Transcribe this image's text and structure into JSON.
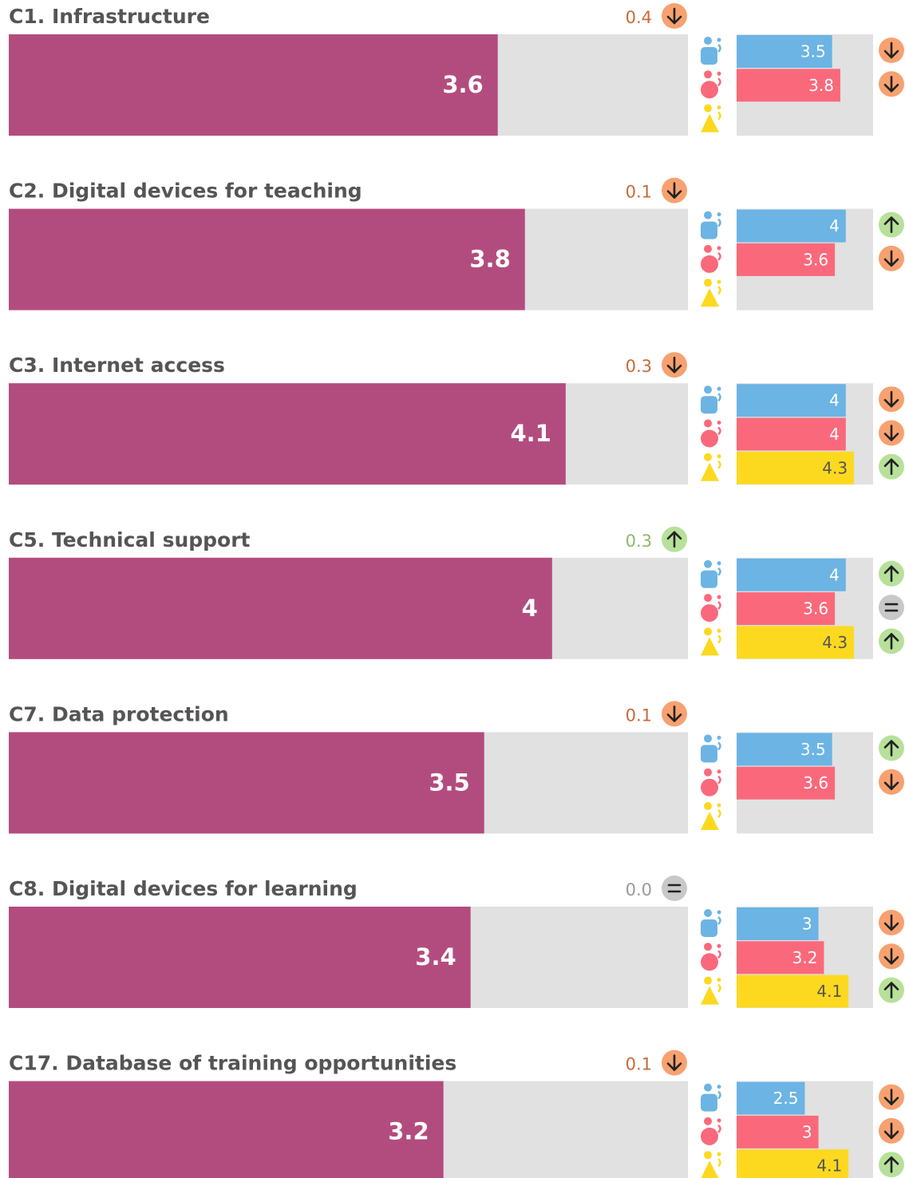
{
  "chart_data": {
    "type": "scorecard",
    "xlim": [
      0,
      5
    ],
    "main_color": "#b34c7e",
    "track_color": "#e1e1e1",
    "group_colors": [
      "#6cb4e4",
      "#f9697b",
      "#fcd91f"
    ],
    "panels": [
      {
        "title": "C1. Infrastructure",
        "value": 3.6,
        "change": {
          "value": 0.4,
          "direction": "down"
        },
        "groups": [
          {
            "value": 3.5,
            "trend": "down"
          },
          {
            "value": 3.8,
            "trend": "down"
          },
          {
            "value": null,
            "trend": null
          }
        ]
      },
      {
        "title": "C2. Digital devices for teaching",
        "value": 3.8,
        "change": {
          "value": 0.1,
          "direction": "down"
        },
        "groups": [
          {
            "value": 4,
            "trend": "up"
          },
          {
            "value": 3.6,
            "trend": "down"
          },
          {
            "value": null,
            "trend": null
          }
        ]
      },
      {
        "title": "C3. Internet access",
        "value": 4.1,
        "change": {
          "value": 0.3,
          "direction": "down"
        },
        "groups": [
          {
            "value": 4,
            "trend": "down"
          },
          {
            "value": 4,
            "trend": "down"
          },
          {
            "value": 4.3,
            "trend": "up"
          }
        ]
      },
      {
        "title": "C5. Technical support",
        "value": 4,
        "change": {
          "value": 0.3,
          "direction": "up"
        },
        "groups": [
          {
            "value": 4,
            "trend": "up"
          },
          {
            "value": 3.6,
            "trend": "equal"
          },
          {
            "value": 4.3,
            "trend": "up"
          }
        ]
      },
      {
        "title": "C7. Data protection",
        "value": 3.5,
        "change": {
          "value": 0.1,
          "direction": "down"
        },
        "groups": [
          {
            "value": 3.5,
            "trend": "up"
          },
          {
            "value": 3.6,
            "trend": "down"
          },
          {
            "value": null,
            "trend": null
          }
        ]
      },
      {
        "title": "C8. Digital devices for learning",
        "value": 3.4,
        "change": {
          "value": {
            "value": 0,
            "label": "0.0"
          },
          "direction": "equal"
        },
        "groups": [
          {
            "value": 3,
            "trend": "down"
          },
          {
            "value": 3.2,
            "trend": "down"
          },
          {
            "value": 4.1,
            "trend": "up"
          }
        ]
      },
      {
        "title": "C17. Database of training opportunities",
        "value": 3.2,
        "change": {
          "value": 0.1,
          "direction": "down"
        },
        "groups": [
          {
            "value": 2.5,
            "trend": "down"
          },
          {
            "value": 3,
            "trend": "down"
          },
          {
            "value": 4.1,
            "trend": "up"
          }
        ]
      }
    ]
  }
}
